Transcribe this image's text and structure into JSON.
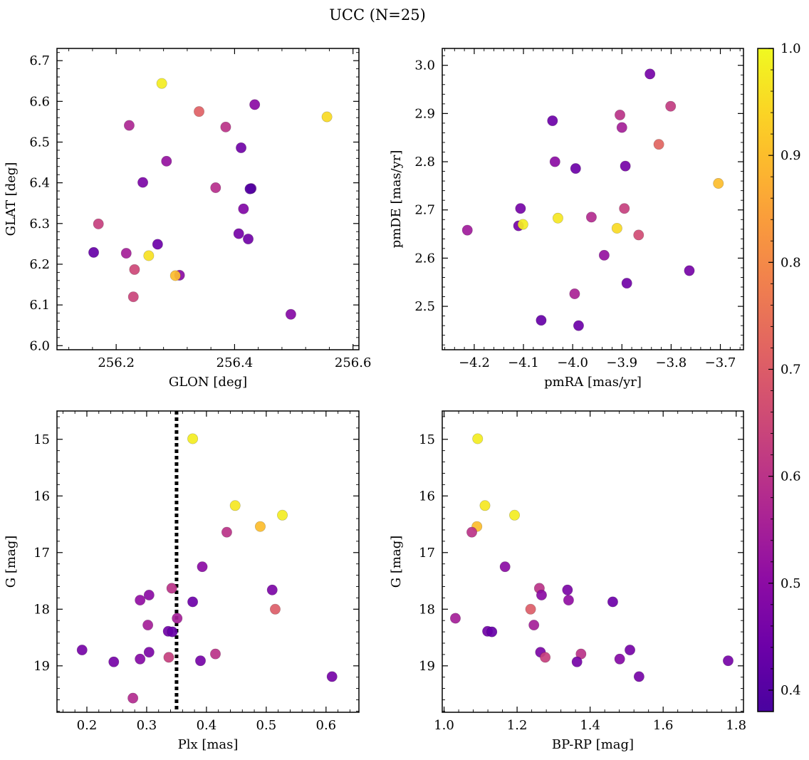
{
  "figure": {
    "title": "UCC (N=25)"
  },
  "colorbar": {
    "colormap": "plasma",
    "range": [
      0.38,
      1.0
    ],
    "ticks": [
      0.4,
      0.5,
      0.6,
      0.7,
      0.8,
      0.9,
      1.0
    ],
    "tick_labels": [
      "0.4",
      "0.5",
      "0.6",
      "0.7",
      "0.8",
      "0.9",
      "1.0"
    ]
  },
  "chart_data": [
    {
      "type": "scatter",
      "xlabel": "GLON [deg]",
      "ylabel": "GLAT [deg]",
      "xlim": [
        256.1,
        256.61
      ],
      "ylim": [
        5.99,
        6.73
      ],
      "xticks": [
        256.2,
        256.4,
        256.6
      ],
      "xtick_labels": [
        "256.2",
        "256.4",
        "256.6"
      ],
      "yticks": [
        6.0,
        6.1,
        6.2,
        6.3,
        6.4,
        6.5,
        6.6,
        6.7
      ],
      "ytick_labels": [
        "6.0",
        "6.1",
        "6.2",
        "6.3",
        "6.4",
        "6.5",
        "6.6",
        "6.7"
      ],
      "points": [
        {
          "x": 256.277,
          "y": 6.644,
          "c": 0.98
        },
        {
          "x": 256.556,
          "y": 6.562,
          "c": 0.95
        },
        {
          "x": 256.34,
          "y": 6.575,
          "c": 0.71
        },
        {
          "x": 256.434,
          "y": 6.592,
          "c": 0.5
        },
        {
          "x": 256.222,
          "y": 6.541,
          "c": 0.57
        },
        {
          "x": 256.385,
          "y": 6.537,
          "c": 0.6
        },
        {
          "x": 256.411,
          "y": 6.486,
          "c": 0.45
        },
        {
          "x": 256.285,
          "y": 6.453,
          "c": 0.52
        },
        {
          "x": 256.245,
          "y": 6.401,
          "c": 0.47
        },
        {
          "x": 256.368,
          "y": 6.388,
          "c": 0.59
        },
        {
          "x": 256.428,
          "y": 6.386,
          "c": 0.42
        },
        {
          "x": 256.415,
          "y": 6.336,
          "c": 0.48
        },
        {
          "x": 256.17,
          "y": 6.299,
          "c": 0.63
        },
        {
          "x": 256.407,
          "y": 6.275,
          "c": 0.46
        },
        {
          "x": 256.423,
          "y": 6.262,
          "c": 0.45
        },
        {
          "x": 256.27,
          "y": 6.249,
          "c": 0.44
        },
        {
          "x": 256.162,
          "y": 6.229,
          "c": 0.43
        },
        {
          "x": 256.217,
          "y": 6.227,
          "c": 0.55
        },
        {
          "x": 256.255,
          "y": 6.221,
          "c": 0.96
        },
        {
          "x": 256.231,
          "y": 6.187,
          "c": 0.65
        },
        {
          "x": 256.307,
          "y": 6.173,
          "c": 0.5
        },
        {
          "x": 256.3,
          "y": 6.172,
          "c": 0.9
        },
        {
          "x": 256.229,
          "y": 6.12,
          "c": 0.64
        },
        {
          "x": 256.495,
          "y": 6.077,
          "c": 0.49
        },
        {
          "x": 256.426,
          "y": 6.385,
          "c": 0.4
        }
      ]
    },
    {
      "type": "scatter",
      "xlabel": "pmRA [mas/yr]",
      "ylabel": "pmDE [mas/yr]",
      "xlim": [
        -4.265,
        -3.653
      ],
      "ylim": [
        2.41,
        3.035
      ],
      "xticks": [
        -4.2,
        -4.1,
        -4.0,
        -3.9,
        -3.8,
        -3.7
      ],
      "xtick_labels": [
        "−4.2",
        "−4.1",
        "−4.0",
        "−3.9",
        "−3.8",
        "−3.7"
      ],
      "yticks": [
        2.5,
        2.6,
        2.7,
        2.8,
        2.9,
        3.0
      ],
      "ytick_labels": [
        "2.5",
        "2.6",
        "2.7",
        "2.8",
        "2.9",
        "3.0"
      ],
      "points": [
        {
          "x": -3.843,
          "y": 2.982,
          "c": 0.46
        },
        {
          "x": -3.801,
          "y": 2.915,
          "c": 0.62
        },
        {
          "x": -3.904,
          "y": 2.897,
          "c": 0.6
        },
        {
          "x": -4.041,
          "y": 2.885,
          "c": 0.44
        },
        {
          "x": -3.9,
          "y": 2.871,
          "c": 0.55
        },
        {
          "x": -3.825,
          "y": 2.836,
          "c": 0.72
        },
        {
          "x": -4.036,
          "y": 2.8,
          "c": 0.5
        },
        {
          "x": -3.994,
          "y": 2.786,
          "c": 0.44
        },
        {
          "x": -3.893,
          "y": 2.791,
          "c": 0.46
        },
        {
          "x": -3.704,
          "y": 2.755,
          "c": 0.9
        },
        {
          "x": -4.106,
          "y": 2.703,
          "c": 0.46
        },
        {
          "x": -3.895,
          "y": 2.703,
          "c": 0.63
        },
        {
          "x": -4.03,
          "y": 2.683,
          "c": 0.97
        },
        {
          "x": -3.962,
          "y": 2.685,
          "c": 0.58
        },
        {
          "x": -4.11,
          "y": 2.667,
          "c": 0.46
        },
        {
          "x": -4.101,
          "y": 2.67,
          "c": 0.98
        },
        {
          "x": -4.214,
          "y": 2.658,
          "c": 0.54
        },
        {
          "x": -3.91,
          "y": 2.662,
          "c": 0.95
        },
        {
          "x": -3.866,
          "y": 2.648,
          "c": 0.66
        },
        {
          "x": -3.936,
          "y": 2.606,
          "c": 0.52
        },
        {
          "x": -3.763,
          "y": 2.574,
          "c": 0.46
        },
        {
          "x": -3.89,
          "y": 2.548,
          "c": 0.45
        },
        {
          "x": -3.996,
          "y": 2.526,
          "c": 0.56
        },
        {
          "x": -4.064,
          "y": 2.471,
          "c": 0.43
        },
        {
          "x": -3.988,
          "y": 2.46,
          "c": 0.44
        }
      ]
    },
    {
      "type": "scatter",
      "xlabel": "Plx [mas]",
      "ylabel": "G [mag]",
      "xlim": [
        0.15,
        0.655
      ],
      "ylim": [
        19.82,
        14.5
      ],
      "y_inverted": true,
      "xticks": [
        0.2,
        0.3,
        0.4,
        0.5,
        0.6
      ],
      "xtick_labels": [
        "0.2",
        "0.3",
        "0.4",
        "0.5",
        "0.6"
      ],
      "yticks": [
        15,
        16,
        17,
        18,
        19
      ],
      "ytick_labels": [
        "15",
        "16",
        "17",
        "18",
        "19"
      ],
      "vline": {
        "x": 0.35,
        "style": "dotted"
      },
      "points": [
        {
          "x": 0.377,
          "y": 14.99,
          "c": 0.98
        },
        {
          "x": 0.448,
          "y": 16.17,
          "c": 0.97
        },
        {
          "x": 0.527,
          "y": 16.34,
          "c": 0.98
        },
        {
          "x": 0.49,
          "y": 16.54,
          "c": 0.9
        },
        {
          "x": 0.434,
          "y": 16.64,
          "c": 0.6
        },
        {
          "x": 0.393,
          "y": 17.25,
          "c": 0.5
        },
        {
          "x": 0.342,
          "y": 17.63,
          "c": 0.6
        },
        {
          "x": 0.51,
          "y": 17.66,
          "c": 0.47
        },
        {
          "x": 0.304,
          "y": 17.75,
          "c": 0.5
        },
        {
          "x": 0.289,
          "y": 17.84,
          "c": 0.51
        },
        {
          "x": 0.377,
          "y": 17.87,
          "c": 0.44
        },
        {
          "x": 0.515,
          "y": 18.0,
          "c": 0.7
        },
        {
          "x": 0.351,
          "y": 18.16,
          "c": 0.55
        },
        {
          "x": 0.302,
          "y": 18.28,
          "c": 0.55
        },
        {
          "x": 0.336,
          "y": 18.39,
          "c": 0.45
        },
        {
          "x": 0.343,
          "y": 18.4,
          "c": 0.43
        },
        {
          "x": 0.192,
          "y": 18.72,
          "c": 0.46
        },
        {
          "x": 0.304,
          "y": 18.76,
          "c": 0.47
        },
        {
          "x": 0.415,
          "y": 18.79,
          "c": 0.6
        },
        {
          "x": 0.337,
          "y": 18.85,
          "c": 0.63
        },
        {
          "x": 0.289,
          "y": 18.88,
          "c": 0.49
        },
        {
          "x": 0.39,
          "y": 18.91,
          "c": 0.46
        },
        {
          "x": 0.245,
          "y": 18.93,
          "c": 0.46
        },
        {
          "x": 0.61,
          "y": 19.19,
          "c": 0.46
        },
        {
          "x": 0.277,
          "y": 19.57,
          "c": 0.58
        }
      ]
    },
    {
      "type": "scatter",
      "xlabel": "BP-RP [mag]",
      "ylabel": "G [mag]",
      "xlim": [
        0.995,
        1.82
      ],
      "ylim": [
        19.82,
        14.5
      ],
      "y_inverted": true,
      "xticks": [
        1.0,
        1.2,
        1.4,
        1.6,
        1.8
      ],
      "xtick_labels": [
        "1.0",
        "1.2",
        "1.4",
        "1.6",
        "1.8"
      ],
      "yticks": [
        15,
        16,
        17,
        18,
        19
      ],
      "ytick_labels": [
        "15",
        "16",
        "17",
        "18",
        "19"
      ],
      "points": [
        {
          "x": 1.092,
          "y": 14.99,
          "c": 0.98
        },
        {
          "x": 1.112,
          "y": 16.17,
          "c": 0.97
        },
        {
          "x": 1.193,
          "y": 16.34,
          "c": 0.98
        },
        {
          "x": 1.09,
          "y": 16.54,
          "c": 0.9
        },
        {
          "x": 1.076,
          "y": 16.64,
          "c": 0.6
        },
        {
          "x": 1.167,
          "y": 17.25,
          "c": 0.5
        },
        {
          "x": 1.261,
          "y": 17.63,
          "c": 0.6
        },
        {
          "x": 1.338,
          "y": 17.66,
          "c": 0.47
        },
        {
          "x": 1.267,
          "y": 17.75,
          "c": 0.5
        },
        {
          "x": 1.341,
          "y": 17.84,
          "c": 0.51
        },
        {
          "x": 1.462,
          "y": 17.87,
          "c": 0.44
        },
        {
          "x": 1.237,
          "y": 18.0,
          "c": 0.7
        },
        {
          "x": 1.031,
          "y": 18.16,
          "c": 0.55
        },
        {
          "x": 1.246,
          "y": 18.28,
          "c": 0.55
        },
        {
          "x": 1.119,
          "y": 18.39,
          "c": 0.45
        },
        {
          "x": 1.131,
          "y": 18.4,
          "c": 0.43
        },
        {
          "x": 1.509,
          "y": 18.72,
          "c": 0.46
        },
        {
          "x": 1.264,
          "y": 18.76,
          "c": 0.47
        },
        {
          "x": 1.375,
          "y": 18.79,
          "c": 0.6
        },
        {
          "x": 1.277,
          "y": 18.85,
          "c": 0.63
        },
        {
          "x": 1.481,
          "y": 18.88,
          "c": 0.49
        },
        {
          "x": 1.778,
          "y": 18.91,
          "c": 0.46
        },
        {
          "x": 1.364,
          "y": 18.93,
          "c": 0.46
        },
        {
          "x": 1.534,
          "y": 19.19,
          "c": 0.46
        }
      ]
    }
  ]
}
